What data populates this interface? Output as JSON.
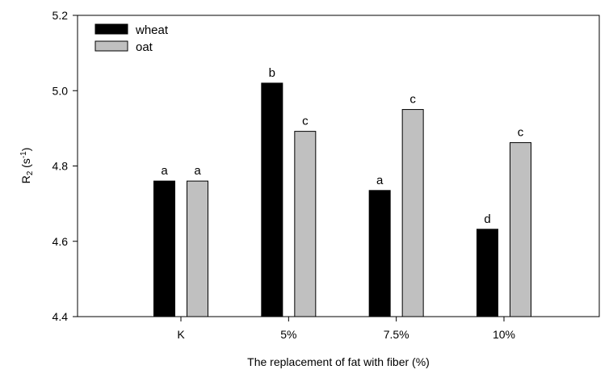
{
  "chart_data": {
    "type": "bar",
    "xlabel": "The replacement of fat with fiber (%)",
    "ylabel_main": "R",
    "ylabel_sub": "2",
    "ylabel_open": " (s",
    "ylabel_sup": "-1",
    "ylabel_close": ")",
    "categories": [
      "K",
      "5%",
      "7.5%",
      "10%"
    ],
    "ylim": [
      4.4,
      5.2
    ],
    "yticks": [
      "4.4",
      "4.6",
      "4.8",
      "5.0",
      "5.2"
    ],
    "legend_position": "top-left",
    "grid": false,
    "series": [
      {
        "name": "wheat",
        "color": "#000000",
        "values": [
          4.76,
          5.02,
          4.735,
          4.632
        ],
        "labels": [
          "a",
          "b",
          "a",
          "d"
        ]
      },
      {
        "name": "oat",
        "color": "#c0c0c0",
        "values": [
          4.76,
          4.892,
          4.95,
          4.862
        ],
        "labels": [
          "a",
          "c",
          "c",
          "c"
        ]
      }
    ]
  }
}
